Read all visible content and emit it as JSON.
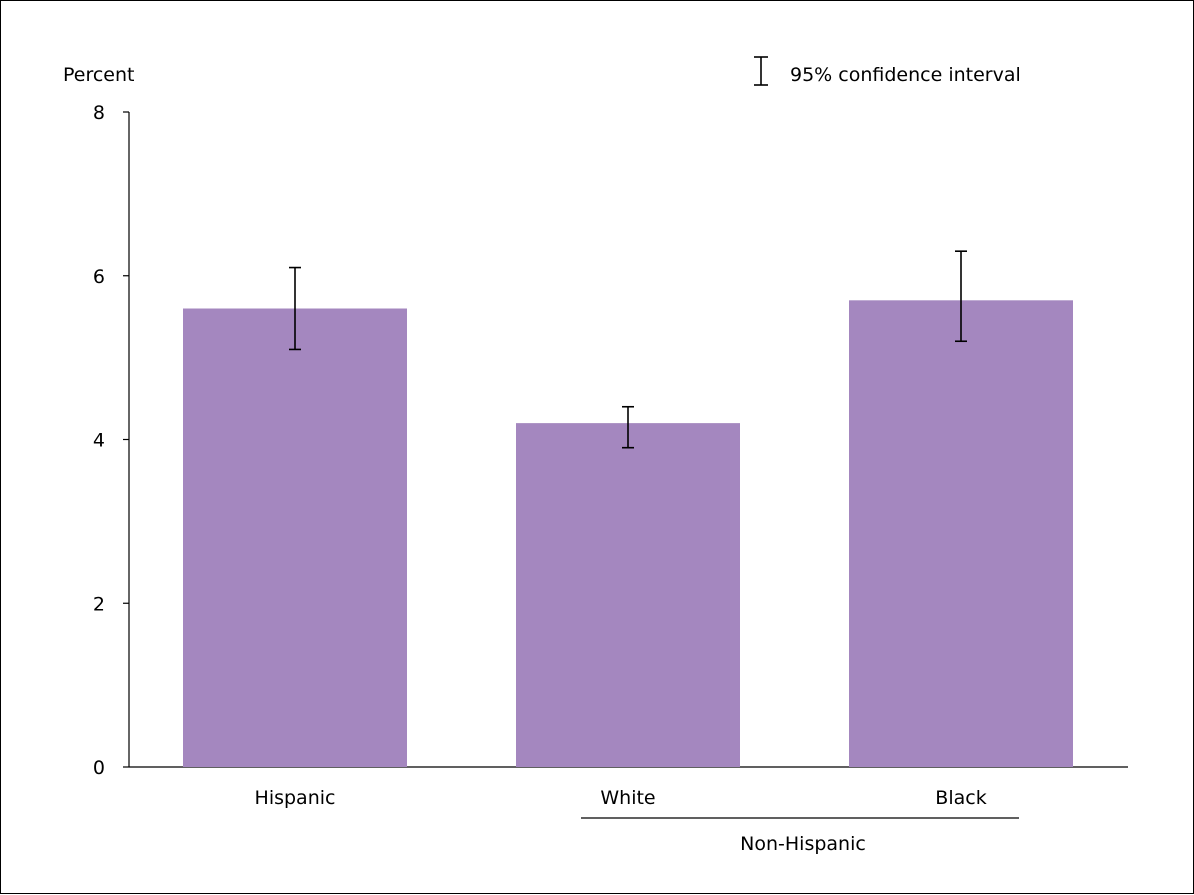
{
  "chart_data": {
    "type": "bar",
    "ylabel": "Percent",
    "ylim": [
      0,
      8
    ],
    "yticks": [
      0,
      2,
      4,
      6,
      8
    ],
    "categories": [
      "Hispanic",
      "White",
      "Black"
    ],
    "values": [
      5.6,
      4.2,
      5.7
    ],
    "ci_lower": [
      5.1,
      3.9,
      5.2
    ],
    "ci_upper": [
      6.1,
      4.4,
      6.3
    ],
    "group_label": "Non-Hispanic",
    "legend": {
      "label": "95% confidence interval",
      "placement": "top-right"
    },
    "bar_color": "#a487bf",
    "grid": false
  }
}
